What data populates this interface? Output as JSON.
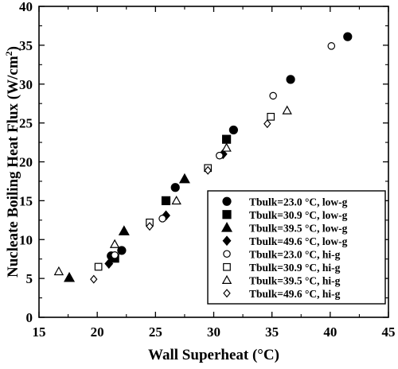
{
  "chart_data": {
    "type": "scatter",
    "xlabel": "Wall Superheat (°C)",
    "ylabel": "Nucleate Boiling Heat Flux (W/cm",
    "ylabel_sup": "2",
    "ylabel_close": ")",
    "xlim": [
      15,
      45
    ],
    "ylim": [
      0,
      40
    ],
    "xticks": [
      15,
      20,
      25,
      30,
      35,
      40,
      45
    ],
    "yticks": [
      0,
      5,
      10,
      15,
      20,
      25,
      30,
      35,
      40
    ],
    "grid": false,
    "legend_position": "bottom-right",
    "series": [
      {
        "name": "Tbulk=23.0 °C, low-g",
        "marker": "circle",
        "filled": true,
        "points": [
          [
            21.2,
            7.9
          ],
          [
            22.1,
            8.6
          ],
          [
            26.7,
            16.7
          ],
          [
            31.7,
            24.1
          ],
          [
            36.6,
            30.6
          ],
          [
            41.5,
            36.1
          ]
        ]
      },
      {
        "name": "Tbulk=30.9 °C, low-g",
        "marker": "square",
        "filled": true,
        "points": [
          [
            21.5,
            7.6
          ],
          [
            25.9,
            15.0
          ],
          [
            31.1,
            22.9
          ]
        ]
      },
      {
        "name": "Tbulk=39.5 °C, low-g",
        "marker": "triangle",
        "filled": true,
        "points": [
          [
            17.6,
            5.1
          ],
          [
            22.3,
            11.1
          ],
          [
            27.5,
            17.8
          ]
        ]
      },
      {
        "name": "Tbulk=49.6 °C, low-g",
        "marker": "diamond",
        "filled": true,
        "points": [
          [
            21.0,
            6.9
          ],
          [
            25.9,
            13.1
          ],
          [
            30.8,
            21.0
          ]
        ]
      },
      {
        "name": "Tbulk=23.0 °C, hi-g",
        "marker": "circle",
        "filled": false,
        "points": [
          [
            21.5,
            8.0
          ],
          [
            25.6,
            12.7
          ],
          [
            30.5,
            20.8
          ],
          [
            35.1,
            28.5
          ],
          [
            40.1,
            34.9
          ]
        ]
      },
      {
        "name": "Tbulk=30.9 °C, hi-g",
        "marker": "square",
        "filled": false,
        "points": [
          [
            20.1,
            6.5
          ],
          [
            24.5,
            12.2
          ],
          [
            29.5,
            19.2
          ],
          [
            34.9,
            25.8
          ]
        ]
      },
      {
        "name": "Tbulk=39.5 °C, hi-g",
        "marker": "triangle",
        "filled": false,
        "points": [
          [
            16.7,
            5.9
          ],
          [
            21.5,
            9.4
          ],
          [
            26.8,
            15.0
          ],
          [
            31.1,
            21.8
          ],
          [
            36.3,
            26.6
          ]
        ]
      },
      {
        "name": "Tbulk=49.6 °C, hi-g",
        "marker": "diamond",
        "filled": false,
        "points": [
          [
            19.7,
            4.9
          ],
          [
            24.5,
            11.7
          ],
          [
            29.5,
            18.9
          ],
          [
            34.6,
            24.9
          ]
        ]
      }
    ]
  }
}
